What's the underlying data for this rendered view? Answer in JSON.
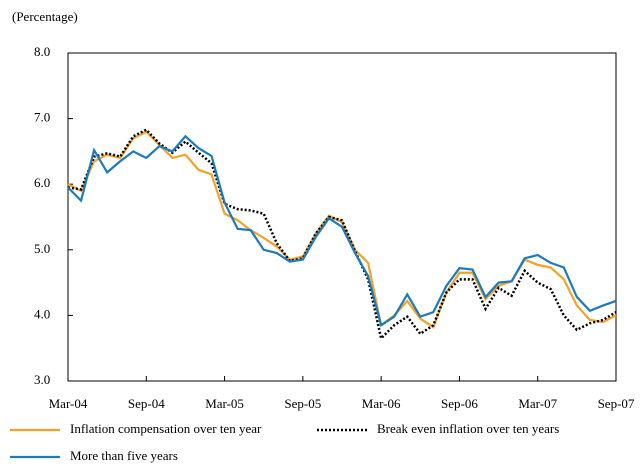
{
  "chart_data": {
    "type": "line",
    "y_label": "(Percentage)",
    "categories": [
      "Mar-04",
      null,
      null,
      null,
      null,
      null,
      "Sep-04",
      null,
      null,
      null,
      null,
      null,
      "Mar-05",
      null,
      null,
      null,
      null,
      null,
      "Sep-05",
      null,
      null,
      null,
      null,
      null,
      "Mar-06",
      null,
      null,
      null,
      null,
      null,
      "Sep-06",
      null,
      null,
      null,
      null,
      null,
      "Mar-07",
      null,
      null,
      null,
      null,
      null,
      "Sep-07"
    ],
    "ylim": [
      3,
      8
    ],
    "yticks": [
      {
        "value": 3,
        "label": "3.0"
      },
      {
        "value": 4,
        "label": "4.0"
      },
      {
        "value": 5,
        "label": "5.0"
      },
      {
        "value": 6,
        "label": "6.0"
      },
      {
        "value": 7,
        "label": "7.0"
      },
      {
        "value": 8,
        "label": "8.0"
      }
    ],
    "grid": false,
    "series": [
      {
        "name": "Inflation compensation over ten year",
        "color": "#f5a128",
        "style": "solid",
        "values": [
          6.0,
          5.9,
          6.35,
          6.45,
          6.4,
          6.7,
          6.8,
          6.6,
          6.4,
          6.45,
          6.22,
          6.15,
          5.55,
          5.45,
          5.3,
          5.18,
          5.05,
          4.85,
          4.9,
          5.25,
          5.52,
          5.42,
          5.0,
          4.8,
          3.85,
          4.0,
          4.22,
          3.95,
          3.82,
          4.35,
          4.65,
          4.65,
          4.25,
          4.45,
          4.52,
          4.85,
          4.77,
          4.73,
          4.55,
          4.15,
          3.93,
          3.9,
          4.0
        ]
      },
      {
        "name": "Break even inflation over ten years",
        "color": "#000000",
        "style": "dotted",
        "values": [
          5.95,
          5.92,
          6.42,
          6.47,
          6.42,
          6.73,
          6.83,
          6.62,
          6.48,
          6.65,
          6.48,
          6.32,
          5.7,
          5.62,
          5.6,
          5.55,
          5.1,
          4.83,
          4.87,
          5.25,
          5.5,
          5.45,
          4.98,
          4.55,
          3.65,
          3.85,
          3.98,
          3.72,
          3.85,
          4.35,
          4.55,
          4.55,
          4.1,
          4.42,
          4.3,
          4.68,
          4.5,
          4.4,
          4.0,
          3.78,
          3.88,
          3.93,
          4.05
        ]
      },
      {
        "name": "More than five years",
        "color": "#1b7bbd",
        "style": "solid",
        "values": [
          5.95,
          5.75,
          6.52,
          6.18,
          6.35,
          6.5,
          6.4,
          6.58,
          6.5,
          6.73,
          6.55,
          6.43,
          5.72,
          5.32,
          5.3,
          5.0,
          4.95,
          4.82,
          4.85,
          5.2,
          5.48,
          5.35,
          4.95,
          4.6,
          3.85,
          3.98,
          4.32,
          3.98,
          4.05,
          4.45,
          4.72,
          4.7,
          4.28,
          4.5,
          4.52,
          4.87,
          4.92,
          4.8,
          4.73,
          4.28,
          4.07,
          4.15,
          4.22
        ]
      }
    ]
  }
}
